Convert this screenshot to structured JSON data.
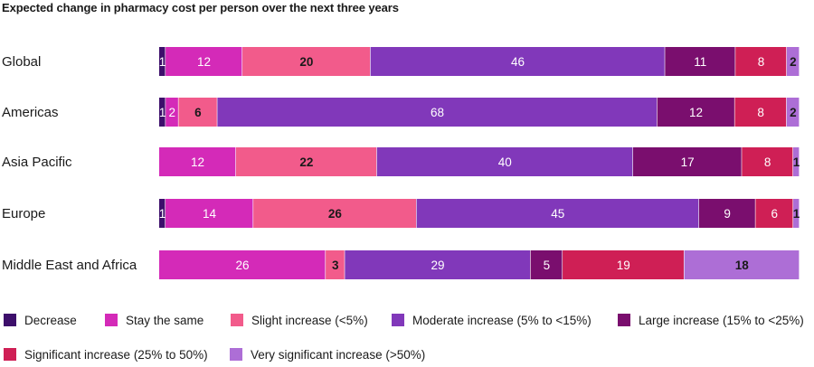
{
  "chart_data": {
    "type": "bar",
    "orientation": "horizontal",
    "stacked": true,
    "title": "Expected change in pharmacy cost per person over the next three years",
    "categories": [
      "Global",
      "Americas",
      "Asia Pacific",
      "Europe",
      "Middle East and Africa"
    ],
    "series": [
      {
        "name": "Decrease",
        "color": "#3d0f6b",
        "label_color": "#ffffff",
        "values": [
          1,
          1,
          0,
          1,
          0
        ]
      },
      {
        "name": "Stay the same",
        "color": "#d42ab8",
        "label_color": "#ffffff",
        "values": [
          12,
          2,
          12,
          14,
          26
        ]
      },
      {
        "name": "Slight increase (<5%)",
        "color": "#f25b8b",
        "label_color": "#1a1a1a",
        "values": [
          20,
          6,
          22,
          26,
          3
        ]
      },
      {
        "name": "Moderate increase (5% to <15%)",
        "color": "#8138ba",
        "label_color": "#ffffff",
        "values": [
          46,
          68,
          40,
          45,
          29
        ]
      },
      {
        "name": "Large increase (15% to <25%)",
        "color": "#7a0e6e",
        "label_color": "#ffffff",
        "values": [
          11,
          12,
          17,
          9,
          5
        ]
      },
      {
        "name": "Significant increase (25% to 50%)",
        "color": "#cf1f55",
        "label_color": "#ffffff",
        "values": [
          8,
          8,
          8,
          6,
          19
        ]
      },
      {
        "name": "Very significant increase (>50%)",
        "color": "#ad6ed6",
        "label_color": "#1a1a1a",
        "values": [
          2,
          2,
          1,
          1,
          18
        ]
      }
    ],
    "legend_position": "bottom",
    "grid": false
  }
}
